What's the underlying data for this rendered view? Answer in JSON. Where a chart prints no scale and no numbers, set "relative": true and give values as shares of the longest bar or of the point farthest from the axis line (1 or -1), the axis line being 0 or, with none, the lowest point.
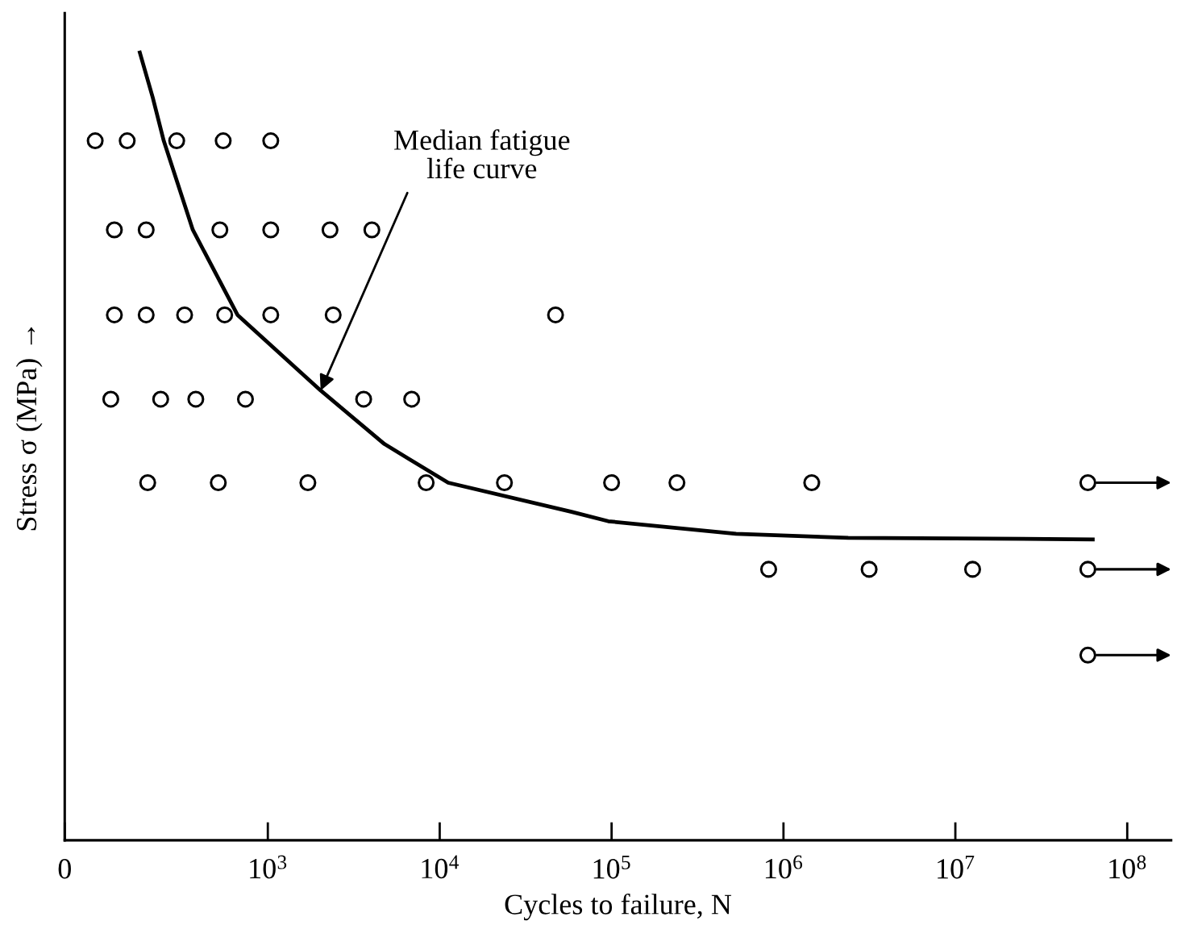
{
  "chart_data": {
    "type": "scatter",
    "xlabel": "Cycles to failure, N",
    "ylabel": "Stress σ (MPa) →",
    "relative": true,
    "log": "x",
    "xlim": [
      0,
      180000000
    ],
    "xticks": [
      0,
      {
        "value": 1000,
        "label": "10$^{3}$"
      },
      {
        "value": 10000,
        "label": "10$^{4}$"
      },
      {
        "value": 100000,
        "label": "10$^{5}$"
      },
      {
        "value": 1000000,
        "label": "10$^{6}$"
      },
      {
        "value": 10000000,
        "label": "10$^{7}$"
      },
      {
        "value": 100000000,
        "label": "10$^{8}$"
      }
    ],
    "grid": false,
    "legend": false,
    "annotations": [
      {
        "text": "Median fatigue\nlife curve",
        "x": 2030,
        "y": 0.571
      }
    ],
    "series": [
      {
        "marker": "circle",
        "color": "#000000",
        "x": [
          99,
          152,
          295,
          550,
          1040,
          128,
          196,
          526,
          1040,
          2300,
          4030,
          128,
          196,
          328,
          561,
          1040,
          2400,
          47200,
          122,
          238,
          381,
          741,
          3610,
          6870,
          200,
          515,
          1710,
          8340,
          23800,
          100000,
          240000,
          1460000,
          59000000,
          820000,
          3150000,
          12600000,
          59000000,
          59000000
        ],
        "values": [
          0.888,
          0.888,
          0.888,
          0.888,
          0.888,
          0.775,
          0.775,
          0.775,
          0.775,
          0.775,
          0.775,
          0.667,
          0.667,
          0.667,
          0.667,
          0.667,
          0.667,
          0.667,
          0.56,
          0.56,
          0.56,
          0.56,
          0.56,
          0.56,
          0.454,
          0.454,
          0.454,
          0.454,
          0.454,
          0.454,
          0.454,
          0.454,
          0.454,
          0.344,
          0.344,
          0.344,
          0.344,
          0.235
        ]
      },
      {
        "type": "line",
        "marker": "none",
        "color": "#000000",
        "line_style": "solid",
        "x": [
          180,
          214,
          248,
          366,
          666,
          2030,
          4770,
          11200,
          58500,
          95700,
          530000,
          2380000,
          63000000
        ],
        "values": [
          1.0,
          0.943,
          0.888,
          0.775,
          0.667,
          0.571,
          0.503,
          0.454,
          0.417,
          0.405,
          0.389,
          0.384,
          0.382
        ]
      }
    ]
  }
}
